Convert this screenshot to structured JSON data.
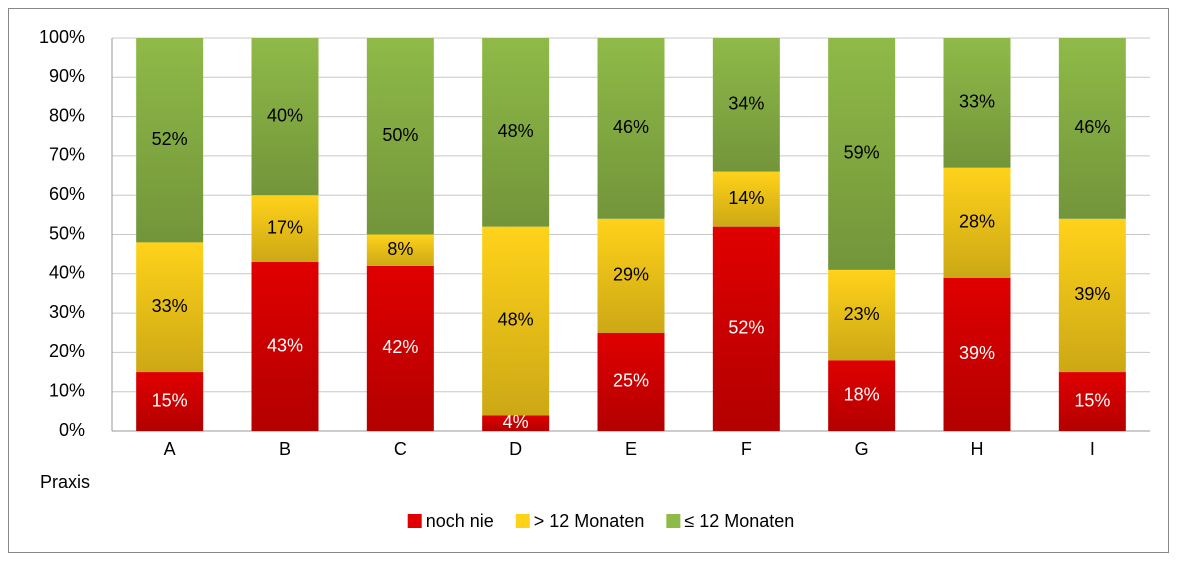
{
  "chart_data": {
    "type": "stacked_bar",
    "x_label": "Praxis",
    "categories": [
      "A",
      "B",
      "C",
      "D",
      "E",
      "F",
      "G",
      "H",
      "I"
    ],
    "series": [
      {
        "name": "noch nie",
        "color": "#e00000",
        "values": [
          15,
          43,
          42,
          4,
          25,
          52,
          18,
          39,
          15
        ],
        "value_labels": [
          "15%",
          "43%",
          "42%",
          "4%",
          "25%",
          "52%",
          "18%",
          "39%",
          "15%"
        ]
      },
      {
        "name": "> 12 Monaten",
        "color": "#ffd21a",
        "values": [
          33,
          17,
          8,
          48,
          29,
          14,
          23,
          28,
          39
        ],
        "value_labels": [
          "33%",
          "17%",
          "8%",
          "48%",
          "29%",
          "14%",
          "23%",
          "28%",
          "39%"
        ]
      },
      {
        "name": "≤ 12 Monaten",
        "color": "#8fba48",
        "values": [
          52,
          40,
          50,
          48,
          46,
          34,
          59,
          33,
          46
        ],
        "value_labels": [
          "52%",
          "40%",
          "50%",
          "48%",
          "46%",
          "34%",
          "59%",
          "33%",
          "46%"
        ]
      }
    ],
    "ylim": [
      0,
      100
    ],
    "yticks": [
      {
        "value": 0,
        "label": "0%"
      },
      {
        "value": 10,
        "label": "10%"
      },
      {
        "value": 20,
        "label": "20%"
      },
      {
        "value": 30,
        "label": "30%"
      },
      {
        "value": 40,
        "label": "40%"
      },
      {
        "value": 50,
        "label": "50%"
      },
      {
        "value": 60,
        "label": "60%"
      },
      {
        "value": 70,
        "label": "70%"
      },
      {
        "value": 80,
        "label": "80%"
      },
      {
        "value": 90,
        "label": "90%"
      },
      {
        "value": 100,
        "label": "100%"
      }
    ],
    "grid": true,
    "legend": "bottom"
  }
}
